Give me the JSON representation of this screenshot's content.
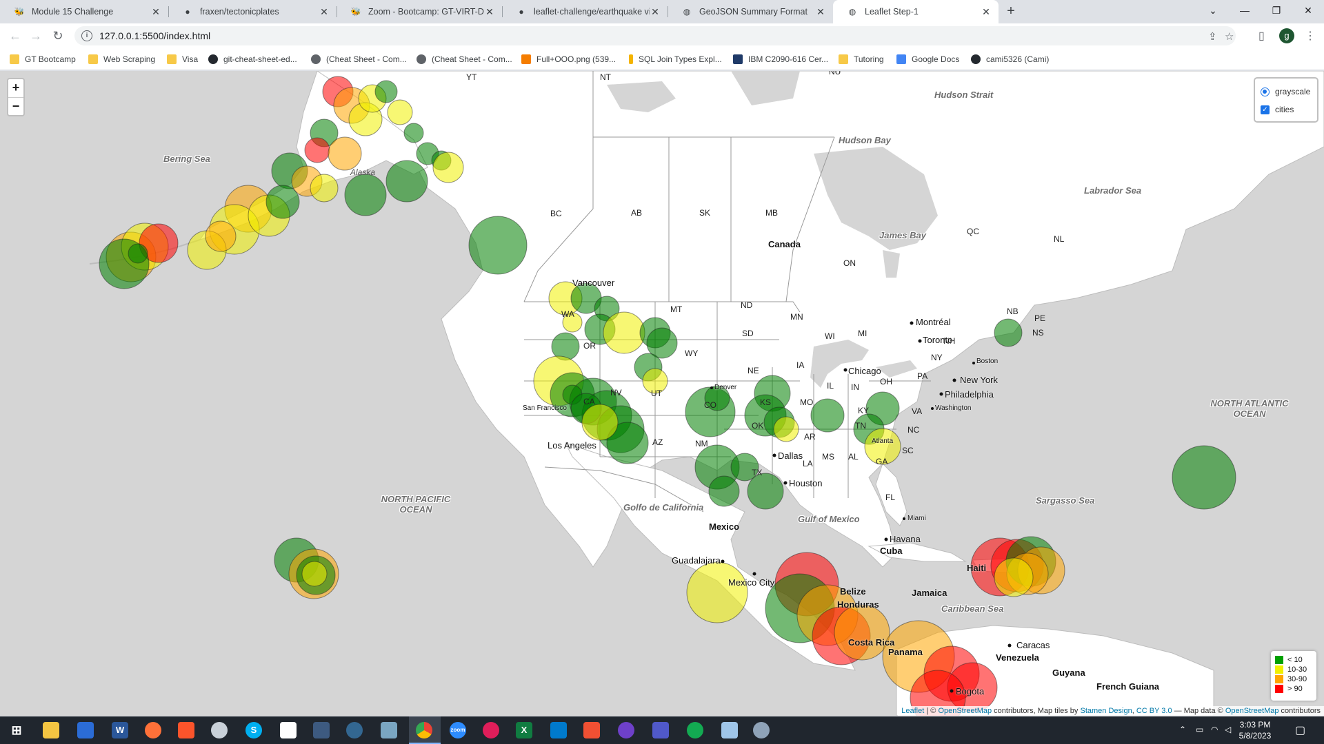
{
  "browser": {
    "tabs": [
      {
        "title": "Module 15 Challenge",
        "icon": "bootcamp-icon",
        "active": false
      },
      {
        "title": "fraxen/tectonicplates",
        "icon": "github-icon",
        "active": false
      },
      {
        "title": "Zoom - Bootcamp: GT-VIRT-DAT/",
        "icon": "bootcamp-icon",
        "active": false
      },
      {
        "title": "leaflet-challenge/earthquake visu",
        "icon": "github-icon",
        "active": false
      },
      {
        "title": "GeoJSON Summary Format",
        "icon": "globe-icon",
        "active": false
      },
      {
        "title": "Leaflet Step-1",
        "icon": "globe-icon",
        "active": true
      }
    ],
    "url": "127.0.0.1:5500/index.html",
    "profile_initial": "g"
  },
  "bookmarks": [
    {
      "label": "GT Bootcamp",
      "icon": "folder-icon"
    },
    {
      "label": "Web Scraping",
      "icon": "folder-icon"
    },
    {
      "label": "Visa",
      "icon": "folder-icon"
    },
    {
      "label": "git-cheat-sheet-ed...",
      "icon": "github-icon"
    },
    {
      "label": "(Cheat Sheet - Com...",
      "icon": "globe-icon"
    },
    {
      "label": "(Cheat Sheet - Com...",
      "icon": "globe-icon"
    },
    {
      "label": "Full+OOO.png (539...",
      "icon": "blogger-icon"
    },
    {
      "label": "SQL Join Types Expl...",
      "icon": "chart-icon"
    },
    {
      "label": "IBM C2090-616 Cer...",
      "icon": "edu-icon"
    },
    {
      "label": "Tutoring",
      "icon": "folder-icon"
    },
    {
      "label": "Google Docs",
      "icon": "docs-icon"
    },
    {
      "label": "cami5326 (Cami)",
      "icon": "github-icon"
    }
  ],
  "map": {
    "zoom_in": "+",
    "zoom_out": "−",
    "layers": {
      "base": "grayscale",
      "overlay": "cities"
    },
    "legend": [
      {
        "label": "< 10",
        "color": "#00a000"
      },
      {
        "label": "10-30",
        "color": "#f0f000"
      },
      {
        "label": "30-90",
        "color": "#ffa500"
      },
      {
        "label": "> 90",
        "color": "#ff0000"
      }
    ],
    "attribution": {
      "leaflet": "Leaflet",
      "osm": "OpenStreetMap",
      "text1": " contributors, Map tiles by ",
      "stamen": "Stamen Design",
      "cc": "CC BY 3.0",
      "text2": " — Map data © ",
      "osm2": "OpenStreetMap",
      "text3": " contributors"
    },
    "ocean_labels": [
      "Bering Sea",
      "NORTH PACIFIC OCEAN",
      "NORTH ATLANTIC OCEAN",
      "Sargasso Sea",
      "Hudson Strait",
      "Hudson Bay",
      "Labrador Sea",
      "James Bay",
      "Golfo de California",
      "Gulf of Mexico",
      "Caribbean Sea"
    ],
    "region_labels": [
      "YT",
      "NT",
      "NU",
      "BC",
      "AB",
      "SK",
      "MB",
      "ON",
      "QC",
      "NL",
      "NB",
      "PE",
      "NS",
      "MT",
      "ND",
      "SD",
      "MN",
      "WI",
      "MI",
      "NY",
      "NH",
      "WY",
      "NE",
      "IA",
      "IL",
      "IN",
      "OH",
      "PA",
      "OR",
      "WA",
      "CO",
      "UT",
      "NV",
      "CA",
      "KS",
      "MO",
      "KY",
      "VA",
      "NC",
      "TN",
      "AZ",
      "NM",
      "OK",
      "AR",
      "TX",
      "LA",
      "MS",
      "AL",
      "GA",
      "SC",
      "FL",
      "Alaska"
    ],
    "country_labels": [
      "Canada",
      "Mexico",
      "Cuba",
      "Haiti",
      "Jamaica",
      "Belize",
      "Honduras",
      "Costa Rica",
      "Panama",
      "Venezuela",
      "Guyana",
      "French Guiana"
    ],
    "city_labels": [
      "Vancouver",
      "Denver",
      "San Francisco",
      "Los Angeles",
      "Chicago",
      "Montréal",
      "Toronto",
      "Boston",
      "New York",
      "Philadelphia",
      "Washington",
      "Atlanta",
      "Dallas",
      "Houston",
      "Miami",
      "Havana",
      "Guadalajara",
      "Mexico City",
      "Caracas",
      "Bogota"
    ]
  },
  "taskbar": {
    "time": "3:03 PM",
    "date": "5/8/2023",
    "apps": [
      "start",
      "explorer",
      "notepad",
      "word",
      "firefox",
      "brave",
      "edge-beta",
      "skype",
      "file",
      "vs",
      "pg",
      "snip",
      "chrome",
      "zoom",
      "slack",
      "excel",
      "vscode",
      "git",
      "github",
      "mongodb",
      "teams",
      "notes",
      "feather"
    ]
  }
}
